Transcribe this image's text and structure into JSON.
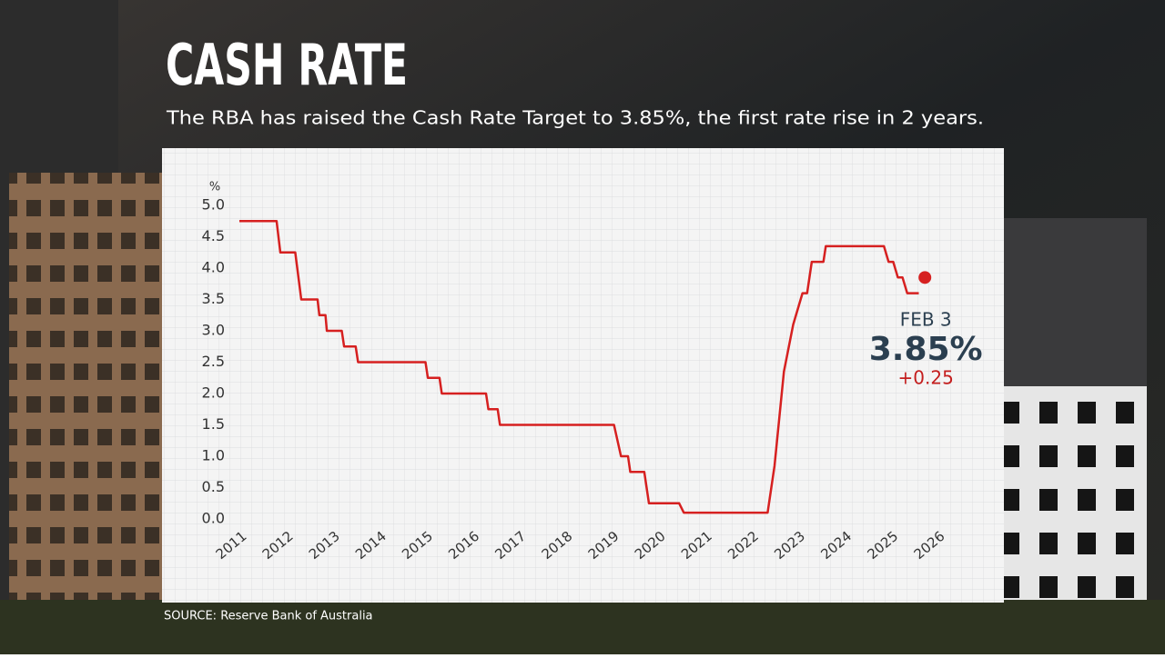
{
  "chart_data": {
    "type": "line",
    "title": "CASH RATE",
    "subtitle": "The RBA has raised the Cash Rate Target to 3.85%, the first rate rise in 2 years.",
    "source": "SOURCE: Reserve Bank of Australia",
    "y_label": "%",
    "color": "#d62020",
    "x": [
      2011,
      2011.8,
      2011.88,
      2012.2,
      2012.33,
      2012.68,
      2012.72,
      2012.85,
      2012.88,
      2013.2,
      2013.25,
      2013.5,
      2013.55,
      2015.0,
      2015.05,
      2015.3,
      2015.35,
      2016.3,
      2016.35,
      2016.55,
      2016.6,
      2019.05,
      2019.2,
      2019.35,
      2019.4,
      2019.7,
      2019.8,
      2020.45,
      2020.55,
      2022.35,
      2022.5,
      2022.7,
      2022.9,
      2023.1,
      2023.2,
      2023.3,
      2023.55,
      2023.6,
      2024.85,
      2024.95,
      2025.05,
      2025.15,
      2025.25,
      2025.35,
      2025.6
    ],
    "values": [
      4.75,
      4.75,
      4.25,
      4.25,
      3.5,
      3.5,
      3.25,
      3.25,
      3.0,
      3.0,
      2.75,
      2.75,
      2.5,
      2.5,
      2.25,
      2.25,
      2.0,
      2.0,
      1.75,
      1.75,
      1.5,
      1.5,
      1.0,
      1.0,
      0.75,
      0.75,
      0.25,
      0.25,
      0.1,
      0.1,
      0.85,
      2.35,
      3.1,
      3.6,
      3.6,
      4.1,
      4.1,
      4.35,
      4.35,
      4.1,
      4.1,
      3.85,
      3.85,
      3.6,
      3.6
    ],
    "highlight": {
      "x": 2025.73,
      "value": 3.85,
      "date_label": "FEB 3",
      "value_label": "3.85%",
      "change_label": "+0.25",
      "change_color": "#c41e1e",
      "value_color": "#2b3f50"
    },
    "xlim": [
      2011,
      2026
    ],
    "xticks": [
      2011,
      2012,
      2013,
      2014,
      2015,
      2016,
      2017,
      2018,
      2019,
      2020,
      2021,
      2022,
      2023,
      2024,
      2025,
      2026
    ],
    "ylim": [
      0,
      5
    ],
    "yticks": [
      {
        "value": 0,
        "label": "0.0"
      },
      0.5,
      {
        "value": 1,
        "label": "1.0"
      },
      1.5,
      {
        "value": 2,
        "label": "2.0"
      },
      2.5,
      {
        "value": 3,
        "label": "3.0"
      },
      3.5,
      {
        "value": 4,
        "label": "4.0"
      },
      4.5,
      {
        "value": 5,
        "label": "5.0"
      }
    ]
  }
}
